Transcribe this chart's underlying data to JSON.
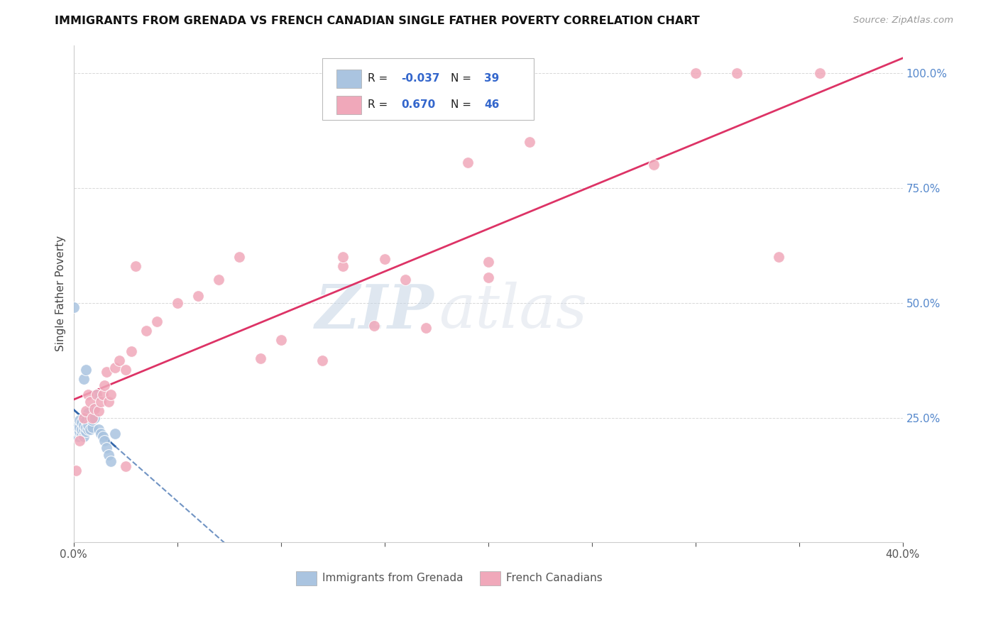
{
  "title": "IMMIGRANTS FROM GRENADA VS FRENCH CANADIAN SINGLE FATHER POVERTY CORRELATION CHART",
  "source": "Source: ZipAtlas.com",
  "ylabel": "Single Father Poverty",
  "legend_r1_label": "R = ",
  "legend_r1_val": "-0.037",
  "legend_n1_label": "N = ",
  "legend_n1_val": "39",
  "legend_r2_label": "R =  ",
  "legend_r2_val": "0.670",
  "legend_n2_label": "N = ",
  "legend_n2_val": "46",
  "blue_color": "#aac4e0",
  "pink_color": "#f0a8ba",
  "blue_line_color": "#3366aa",
  "pink_line_color": "#dd3366",
  "watermark_zip": "ZIP",
  "watermark_atlas": "atlas",
  "xlim": [
    0.0,
    0.4
  ],
  "ylim": [
    -0.02,
    1.06
  ],
  "blue_scatter_x": [
    0.001,
    0.001,
    0.002,
    0.002,
    0.002,
    0.003,
    0.003,
    0.003,
    0.003,
    0.004,
    0.004,
    0.004,
    0.005,
    0.005,
    0.005,
    0.006,
    0.006,
    0.006,
    0.007,
    0.007,
    0.007,
    0.008,
    0.008,
    0.009,
    0.009,
    0.01,
    0.01,
    0.011,
    0.012,
    0.013,
    0.014,
    0.015,
    0.016,
    0.017,
    0.018,
    0.02,
    0.005,
    0.006,
    0.0
  ],
  "blue_scatter_y": [
    0.215,
    0.23,
    0.21,
    0.22,
    0.23,
    0.215,
    0.22,
    0.23,
    0.245,
    0.215,
    0.225,
    0.24,
    0.21,
    0.225,
    0.235,
    0.22,
    0.23,
    0.245,
    0.225,
    0.235,
    0.26,
    0.225,
    0.25,
    0.23,
    0.245,
    0.27,
    0.25,
    0.3,
    0.225,
    0.215,
    0.21,
    0.2,
    0.185,
    0.17,
    0.155,
    0.215,
    0.335,
    0.355,
    0.49
  ],
  "pink_scatter_x": [
    0.001,
    0.003,
    0.005,
    0.006,
    0.007,
    0.008,
    0.009,
    0.01,
    0.011,
    0.012,
    0.013,
    0.014,
    0.015,
    0.016,
    0.017,
    0.018,
    0.02,
    0.022,
    0.025,
    0.028,
    0.03,
    0.035,
    0.04,
    0.05,
    0.06,
    0.07,
    0.08,
    0.09,
    0.1,
    0.12,
    0.13,
    0.15,
    0.17,
    0.19,
    0.2,
    0.22,
    0.28,
    0.3,
    0.32,
    0.34,
    0.36,
    0.2,
    0.16,
    0.145,
    0.025,
    0.13
  ],
  "pink_scatter_y": [
    0.135,
    0.2,
    0.25,
    0.265,
    0.3,
    0.285,
    0.25,
    0.27,
    0.3,
    0.265,
    0.285,
    0.3,
    0.32,
    0.35,
    0.285,
    0.3,
    0.36,
    0.375,
    0.355,
    0.395,
    0.58,
    0.44,
    0.46,
    0.5,
    0.515,
    0.55,
    0.6,
    0.38,
    0.42,
    0.375,
    0.58,
    0.595,
    0.445,
    0.805,
    0.59,
    0.85,
    0.8,
    1.0,
    1.0,
    0.6,
    1.0,
    0.555,
    0.55,
    0.45,
    0.145,
    0.6
  ],
  "background_color": "#ffffff",
  "grid_color": "#d8d8d8"
}
